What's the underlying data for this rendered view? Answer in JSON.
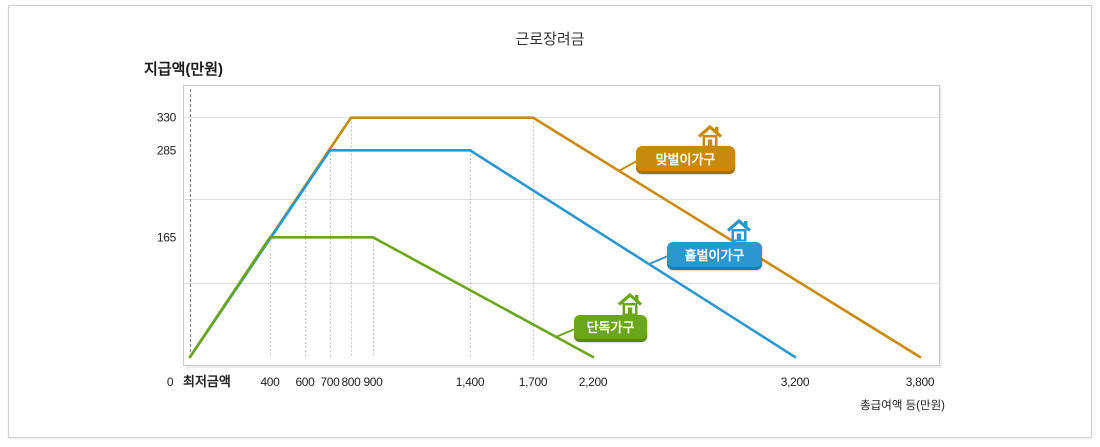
{
  "chart_data": {
    "type": "line",
    "title": "근로장려금",
    "ylabel": "지급액(만원)",
    "xlabel": "총급여액 등(만원)",
    "origin_label": "0",
    "ylim": [
      0,
      375
    ],
    "grid": true,
    "legend": "inline",
    "label_icon": "house-icon",
    "y_ticks": [
      {
        "label": "165",
        "value": 165
      },
      {
        "label": "285",
        "value": 285
      },
      {
        "label": "330",
        "value": 330
      }
    ],
    "x_ticks": [
      {
        "label": "최저금액"
      },
      {
        "label": "400",
        "value": 400
      },
      {
        "label": "600",
        "value": 600
      },
      {
        "label": "700",
        "value": 700
      },
      {
        "label": "800",
        "value": 800
      },
      {
        "label": "900",
        "value": 900
      },
      {
        "label": "1,400",
        "value": 1400
      },
      {
        "label": "1,700",
        "value": 1700
      },
      {
        "label": "2,200",
        "value": 2200
      },
      {
        "label": "3,200",
        "value": 3200
      },
      {
        "label": "3,800",
        "value": 3800
      }
    ],
    "series": [
      {
        "name": "맞벌이가구",
        "color": "#c98a0c",
        "points": [
          [
            "최저금액",
            0
          ],
          [
            800,
            330
          ],
          [
            1700,
            330
          ],
          [
            3800,
            0
          ]
        ]
      },
      {
        "name": "홑벌이가구",
        "color": "#2b97cf",
        "points": [
          [
            "최저금액",
            0
          ],
          [
            700,
            285
          ],
          [
            1400,
            285
          ],
          [
            3200,
            0
          ]
        ]
      },
      {
        "name": "단독가구",
        "color": "#6ba51a",
        "points": [
          [
            "최저금액",
            0
          ],
          [
            400,
            165
          ],
          [
            900,
            165
          ],
          [
            2200,
            0
          ]
        ]
      }
    ]
  }
}
